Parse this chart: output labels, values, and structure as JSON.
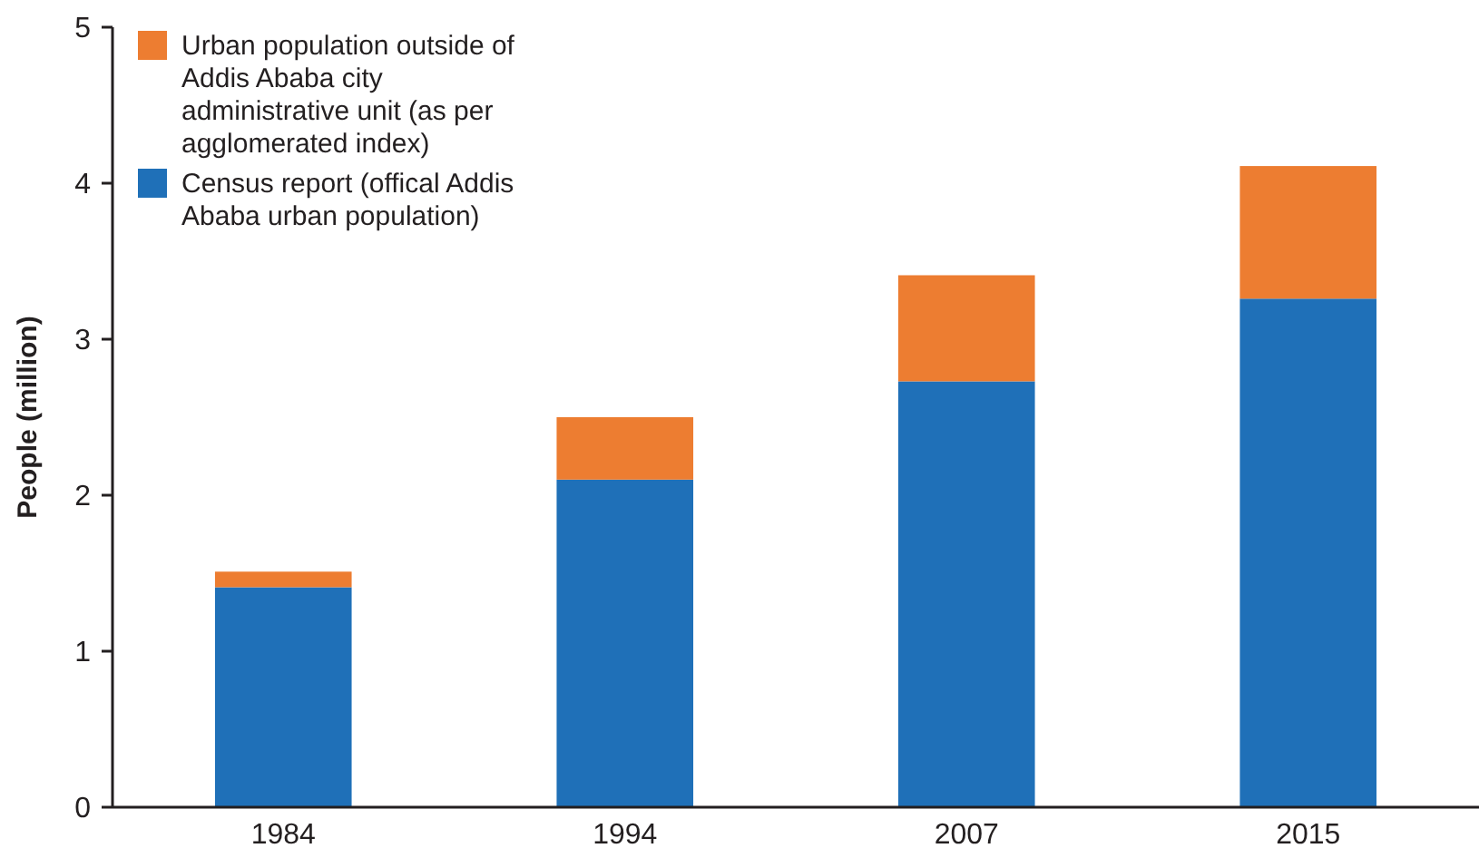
{
  "chart_data": {
    "type": "bar",
    "stacked": true,
    "ylabel": "People (million)",
    "categories": [
      "1984",
      "1994",
      "2007",
      "2015"
    ],
    "series": [
      {
        "name": "Census report (offical Addis Ababa urban population)",
        "color": "#1f70b8",
        "values": [
          1.41,
          2.1,
          2.73,
          3.26
        ]
      },
      {
        "name": "Urban population outside of Addis Ababa city administrative unit (as per agglomerated index)",
        "color": "#ed7d31",
        "values": [
          0.1,
          0.4,
          0.68,
          0.85
        ]
      }
    ],
    "ylim": [
      0,
      5
    ],
    "yticks": [
      0,
      1,
      2,
      3,
      4,
      5
    ],
    "legend": "top left",
    "grid": false
  }
}
